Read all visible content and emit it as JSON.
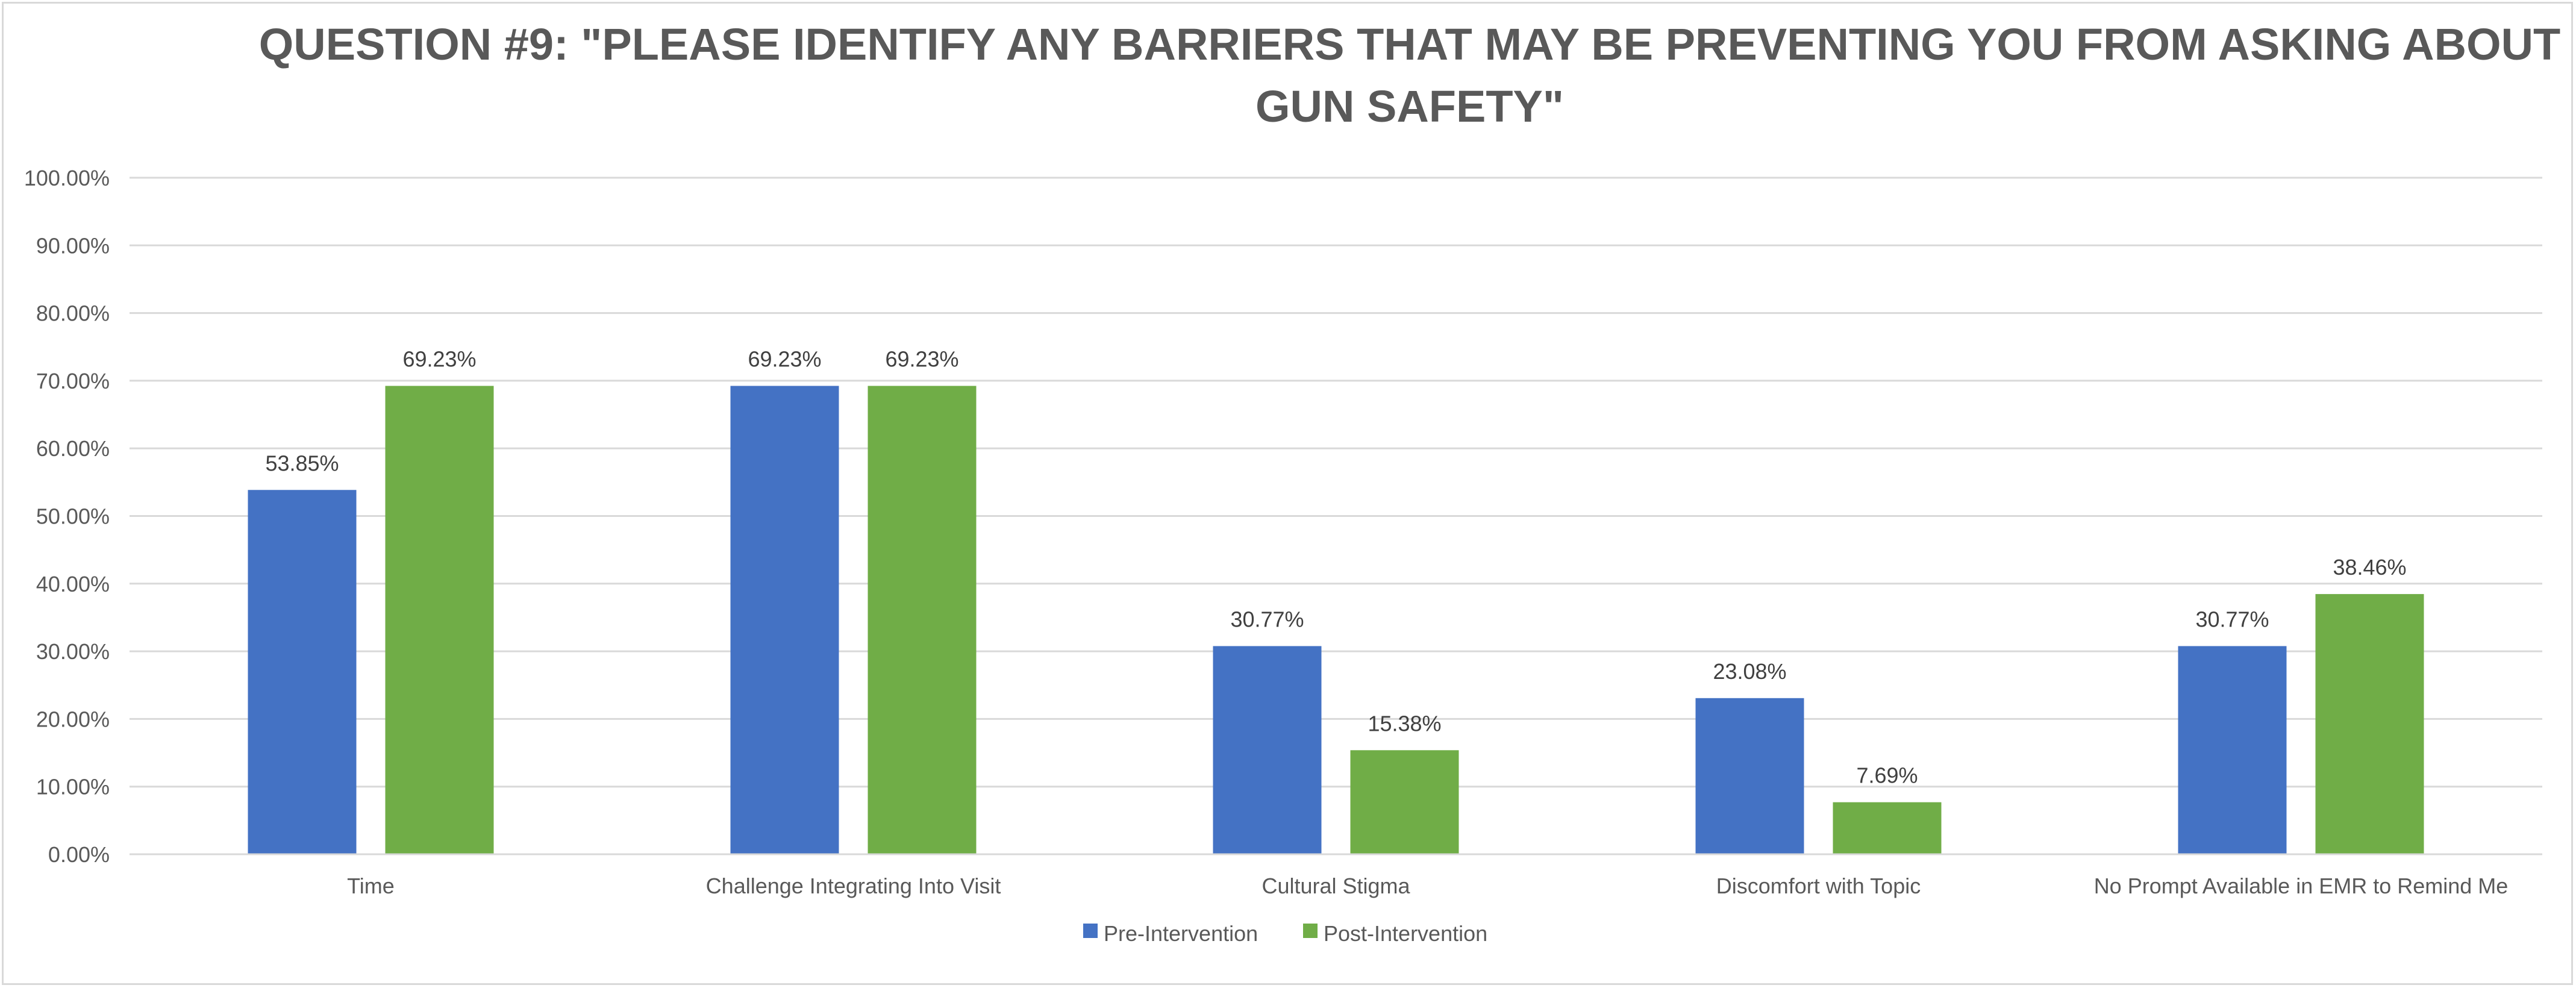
{
  "chart_data": {
    "type": "bar",
    "title": "QUESTION #9: \"PLEASE IDENTIFY ANY BARRIERS THAT MAY BE PREVENTING YOU FROM ASKING ABOUT GUN SAFETY\"",
    "categories": [
      "Time",
      "Challenge Integrating Into Visit",
      "Cultural Stigma",
      "Discomfort with Topic",
      "No Prompt Available in EMR to Remind Me"
    ],
    "series": [
      {
        "name": "Pre-Intervention",
        "values": [
          53.85,
          69.23,
          30.77,
          23.08,
          30.77
        ],
        "color": "#4472c4"
      },
      {
        "name": "Post-Intervention",
        "values": [
          69.23,
          69.23,
          15.38,
          7.69,
          38.46
        ],
        "color": "#70ad47"
      }
    ],
    "value_labels": [
      [
        "53.85%",
        "69.23%",
        "30.77%",
        "23.08%",
        "30.77%"
      ],
      [
        "69.23%",
        "69.23%",
        "15.38%",
        "7.69%",
        "38.46%"
      ]
    ],
    "ylim": [
      0,
      100
    ],
    "yticks": [
      "0.00%",
      "10.00%",
      "20.00%",
      "30.00%",
      "40.00%",
      "50.00%",
      "60.00%",
      "70.00%",
      "80.00%",
      "90.00%",
      "100.00%"
    ],
    "xlabel": "",
    "ylabel": "",
    "grid": true,
    "legend_position": "bottom",
    "gridline_color": "#d9d9d9"
  }
}
